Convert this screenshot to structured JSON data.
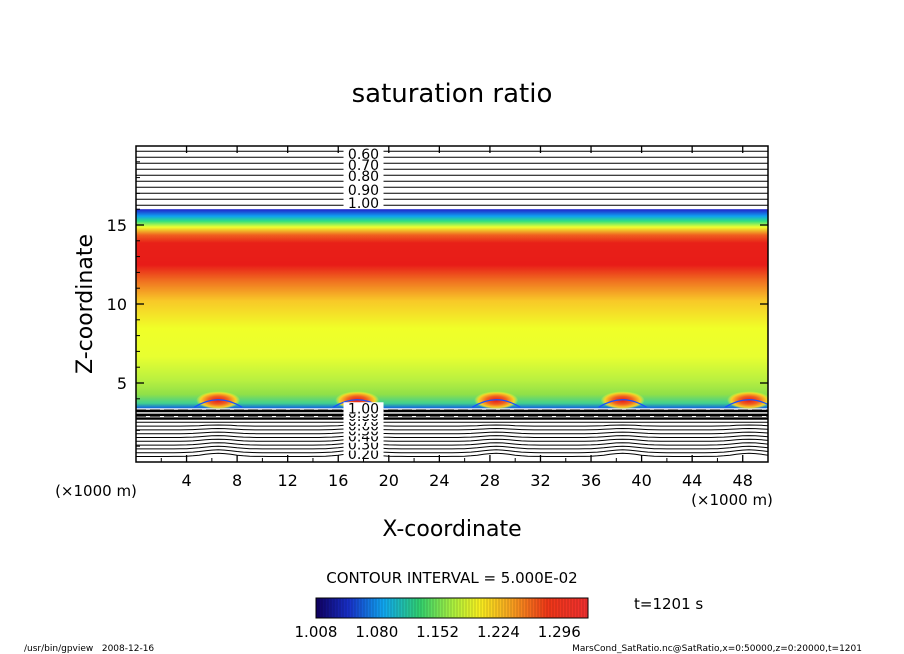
{
  "chart_data": {
    "type": "heatmap",
    "title": "saturation ratio",
    "xlabel": "X-coordinate",
    "ylabel": "Z-coordinate",
    "x_unit_label": "(×1000 m)",
    "y_unit_label": "(×1000 m)",
    "xlim": [
      0,
      50
    ],
    "ylim": [
      0,
      20
    ],
    "x_ticks": [
      4,
      8,
      12,
      16,
      20,
      24,
      28,
      32,
      36,
      40,
      44,
      48
    ],
    "y_ticks": [
      5,
      10,
      15
    ],
    "contour_interval_label": "CONTOUR INTERVAL = 5.000E-02",
    "time_label": "t=1201 s",
    "colorbar": {
      "range": [
        1.008,
        1.33
      ],
      "tick_labels": [
        "1.008",
        "1.080",
        "1.152",
        "1.224",
        "1.296"
      ],
      "tick_values": [
        1.008,
        1.08,
        1.152,
        1.224,
        1.296
      ]
    },
    "upper_contour_labels": [
      "0.60",
      "0.70",
      "0.80",
      "0.90",
      "1.00"
    ],
    "upper_contour_z": [
      19.5,
      18.8,
      18.1,
      17.2,
      16.4
    ],
    "lower_contour_labels": [
      "0.20",
      "0.30",
      "0.40",
      "0.50",
      "0.60",
      "0.70",
      "0.80",
      "0.90",
      "1.00"
    ],
    "lower_contour_z": [
      0.5,
      1.1,
      1.6,
      2.0,
      2.3,
      2.6,
      2.9,
      3.1,
      3.4
    ],
    "colored_layer_z": [
      3.4,
      16.0
    ],
    "peak_band_z": [
      12.5,
      14.5
    ],
    "plume_x": [
      6.5,
      17.5,
      28.5,
      38.5,
      48.5
    ]
  },
  "footer": {
    "left": "/usr/bin/gpview   2008-12-16",
    "right": "MarsCond_SatRatio.nc@SatRatio,x=0:50000,z=0:20000,t=1201"
  },
  "colors": {
    "low": "#1a0a7a",
    "mid": "#f2ff22",
    "high": "#e8141c",
    "contour": "#000000"
  }
}
